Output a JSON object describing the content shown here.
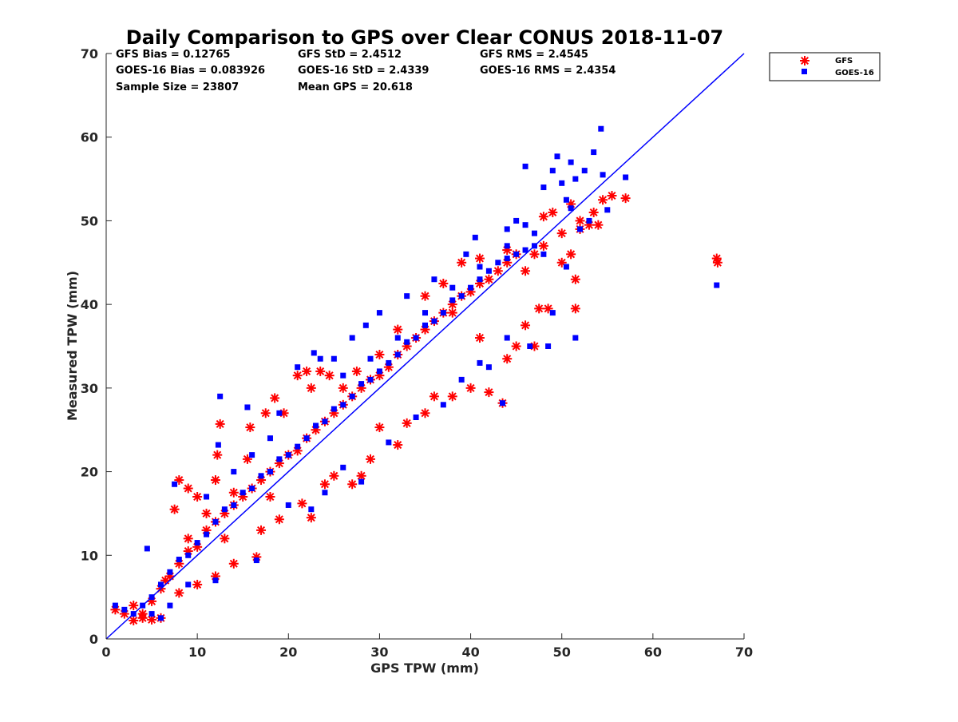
{
  "chart_data": {
    "type": "scatter",
    "title": "Daily Comparison to GPS over Clear CONUS 2018-11-07",
    "xlabel": "GPS TPW (mm)",
    "ylabel": "Measured TPW (mm)",
    "xlim": [
      0,
      70
    ],
    "ylim": [
      0,
      70
    ],
    "xticks": [
      0,
      10,
      20,
      30,
      40,
      50,
      60,
      70
    ],
    "yticks": [
      0,
      10,
      20,
      30,
      40,
      50,
      60,
      70
    ],
    "stats": [
      "GFS Bias = 0.12765",
      "GFS StD = 2.4512",
      "GFS RMS = 2.4545",
      "GOES-16 Bias = 0.083926",
      "GOES-16 StD = 2.4339",
      "GOES-16 RMS = 2.4354",
      "Sample Size = 23807",
      "Mean GPS = 20.618"
    ],
    "reference_line": {
      "name": "1:1",
      "x": [
        0,
        70
      ],
      "y": [
        0,
        70
      ],
      "color": "#0000ff"
    },
    "legend_position": "outside-top-right",
    "series": [
      {
        "name": "GFS",
        "marker": "asterisk",
        "color": "#ff0000",
        "points": [
          [
            1,
            3.5
          ],
          [
            2,
            3
          ],
          [
            3,
            4
          ],
          [
            4,
            3
          ],
          [
            5,
            4.5
          ],
          [
            6,
            6
          ],
          [
            7,
            7.5
          ],
          [
            8,
            9
          ],
          [
            9,
            10.5
          ],
          [
            10,
            11
          ],
          [
            11,
            13
          ],
          [
            12,
            14
          ],
          [
            13,
            15
          ],
          [
            14,
            16
          ],
          [
            15,
            17
          ],
          [
            16,
            18
          ],
          [
            17,
            19
          ],
          [
            18,
            20
          ],
          [
            19,
            21
          ],
          [
            20,
            22
          ],
          [
            21,
            22.5
          ],
          [
            22,
            24
          ],
          [
            23,
            25
          ],
          [
            24,
            26
          ],
          [
            25,
            27
          ],
          [
            26,
            28
          ],
          [
            27,
            29
          ],
          [
            28,
            30
          ],
          [
            29,
            31
          ],
          [
            30,
            31.5
          ],
          [
            31,
            32.5
          ],
          [
            32,
            34
          ],
          [
            33,
            35
          ],
          [
            34,
            36
          ],
          [
            35,
            37
          ],
          [
            36,
            38
          ],
          [
            37,
            39
          ],
          [
            38,
            40
          ],
          [
            39,
            41
          ],
          [
            40,
            41.5
          ],
          [
            41,
            42.5
          ],
          [
            42,
            43
          ],
          [
            43,
            44
          ],
          [
            44,
            45
          ],
          [
            45,
            46
          ],
          [
            46,
            44
          ],
          [
            47,
            46
          ],
          [
            48,
            47
          ],
          [
            7.5,
            15.5
          ],
          [
            8,
            19
          ],
          [
            9,
            18
          ],
          [
            10,
            17
          ],
          [
            12,
            19
          ],
          [
            12.5,
            25.7
          ],
          [
            12.2,
            22
          ],
          [
            15.5,
            21.5
          ],
          [
            15.8,
            25.3
          ],
          [
            17.5,
            27
          ],
          [
            18.5,
            28.8
          ],
          [
            19.5,
            27
          ],
          [
            21,
            31.5
          ],
          [
            22,
            32
          ],
          [
            22.5,
            30
          ],
          [
            23.5,
            32
          ],
          [
            24.5,
            31.5
          ],
          [
            19,
            14.3
          ],
          [
            21.5,
            16.2
          ],
          [
            22.5,
            14.5
          ],
          [
            24,
            18.5
          ],
          [
            25,
            19.5
          ],
          [
            27,
            18.5
          ],
          [
            28,
            19.5
          ],
          [
            29,
            21.5
          ],
          [
            30,
            25.3
          ],
          [
            32,
            23.2
          ],
          [
            33,
            25.8
          ],
          [
            35,
            27
          ],
          [
            36,
            29
          ],
          [
            38,
            29
          ],
          [
            40,
            30
          ],
          [
            42,
            29.5
          ],
          [
            43.5,
            28.2
          ],
          [
            38,
            39
          ],
          [
            41,
            36
          ],
          [
            44,
            33.5
          ],
          [
            45,
            35
          ],
          [
            46,
            37.5
          ],
          [
            47,
            35
          ],
          [
            47.5,
            39.5
          ],
          [
            51.5,
            43
          ],
          [
            51.5,
            39.5
          ],
          [
            48.5,
            39.5
          ],
          [
            50,
            45
          ],
          [
            51,
            46
          ],
          [
            48,
            50.5
          ],
          [
            49,
            51
          ],
          [
            50,
            48.5
          ],
          [
            52,
            49
          ],
          [
            53,
            49.5
          ],
          [
            54,
            49.5
          ],
          [
            54.5,
            52.5
          ],
          [
            55.5,
            53
          ],
          [
            57,
            52.7
          ],
          [
            51,
            52
          ],
          [
            52,
            50
          ],
          [
            53.5,
            51
          ],
          [
            67,
            45.5
          ],
          [
            67.1,
            45
          ],
          [
            4,
            2.5
          ],
          [
            5,
            2.3
          ],
          [
            6,
            2.5
          ],
          [
            3,
            2.2
          ],
          [
            8,
            5.5
          ],
          [
            10,
            6.5
          ],
          [
            12,
            7.5
          ],
          [
            14,
            9
          ],
          [
            16.5,
            9.8
          ],
          [
            13,
            12
          ],
          [
            17,
            13
          ],
          [
            6.5,
            7
          ],
          [
            9,
            12
          ],
          [
            11,
            15
          ],
          [
            14,
            17.5
          ],
          [
            18,
            17
          ],
          [
            26,
            30
          ],
          [
            27.5,
            32
          ],
          [
            30,
            34
          ],
          [
            32,
            37
          ],
          [
            35,
            41
          ],
          [
            37,
            42.5
          ],
          [
            39,
            45
          ],
          [
            41,
            45.5
          ],
          [
            44,
            46.5
          ]
        ]
      },
      {
        "name": "GOES-16",
        "marker": "square",
        "color": "#0000ff",
        "points": [
          [
            1,
            4
          ],
          [
            2,
            3.5
          ],
          [
            3,
            3
          ],
          [
            4,
            4
          ],
          [
            5,
            5
          ],
          [
            6,
            6.5
          ],
          [
            7,
            8
          ],
          [
            8,
            9.5
          ],
          [
            9,
            10
          ],
          [
            10,
            11.5
          ],
          [
            11,
            12.5
          ],
          [
            12,
            14
          ],
          [
            13,
            15.5
          ],
          [
            14,
            16
          ],
          [
            15,
            17.5
          ],
          [
            16,
            18
          ],
          [
            17,
            19.5
          ],
          [
            18,
            20
          ],
          [
            19,
            21.5
          ],
          [
            20,
            22
          ],
          [
            21,
            23
          ],
          [
            22,
            24
          ],
          [
            23,
            25.5
          ],
          [
            24,
            26
          ],
          [
            25,
            27.5
          ],
          [
            26,
            28
          ],
          [
            27,
            29
          ],
          [
            28,
            30.5
          ],
          [
            29,
            31
          ],
          [
            30,
            32
          ],
          [
            31,
            33
          ],
          [
            32,
            34
          ],
          [
            33,
            35.5
          ],
          [
            34,
            36
          ],
          [
            35,
            37.5
          ],
          [
            36,
            38
          ],
          [
            37,
            39
          ],
          [
            38,
            40.5
          ],
          [
            39,
            41
          ],
          [
            40,
            42
          ],
          [
            41,
            43
          ],
          [
            42,
            44
          ],
          [
            43,
            45
          ],
          [
            44,
            45.5
          ],
          [
            45,
            46
          ],
          [
            46,
            46.5
          ],
          [
            47,
            47
          ],
          [
            48,
            46
          ],
          [
            12.5,
            29
          ],
          [
            12.3,
            23.2
          ],
          [
            15.5,
            27.7
          ],
          [
            19,
            27
          ],
          [
            21,
            32.5
          ],
          [
            22.8,
            34.2
          ],
          [
            23.5,
            33.5
          ],
          [
            25,
            33.5
          ],
          [
            27,
            36
          ],
          [
            28.5,
            37.5
          ],
          [
            30,
            39
          ],
          [
            33,
            41
          ],
          [
            36,
            43
          ],
          [
            39.5,
            46
          ],
          [
            40.5,
            48
          ],
          [
            44,
            49
          ],
          [
            46,
            49.5
          ],
          [
            45,
            50
          ],
          [
            49,
            56
          ],
          [
            49.5,
            57.7
          ],
          [
            50,
            54.5
          ],
          [
            50.5,
            52.5
          ],
          [
            51,
            51.5
          ],
          [
            51.5,
            55
          ],
          [
            52.5,
            56
          ],
          [
            53.5,
            58.2
          ],
          [
            54.3,
            61
          ],
          [
            54.5,
            55.5
          ],
          [
            55,
            51.3
          ],
          [
            57,
            55.2
          ],
          [
            46,
            56.5
          ],
          [
            48,
            54
          ],
          [
            51,
            57
          ],
          [
            52,
            49
          ],
          [
            53,
            50
          ],
          [
            50.5,
            44.5
          ],
          [
            49,
            39
          ],
          [
            51.5,
            36
          ],
          [
            48.5,
            35
          ],
          [
            46.5,
            35
          ],
          [
            67,
            42.3
          ],
          [
            16.5,
            9.4
          ],
          [
            12,
            7
          ],
          [
            4.5,
            10.8
          ],
          [
            7.5,
            18.5
          ],
          [
            5,
            3
          ],
          [
            6,
            2.5
          ],
          [
            7,
            4
          ],
          [
            9,
            6.5
          ],
          [
            20,
            16
          ],
          [
            22.5,
            15.5
          ],
          [
            24,
            17.5
          ],
          [
            26,
            20.5
          ],
          [
            28,
            18.8
          ],
          [
            31,
            23.5
          ],
          [
            34,
            26.5
          ],
          [
            37,
            28
          ],
          [
            39,
            31
          ],
          [
            42,
            32.5
          ],
          [
            41,
            33
          ],
          [
            44,
            36
          ],
          [
            43.5,
            28.2
          ],
          [
            18,
            24
          ],
          [
            16,
            22
          ],
          [
            14,
            20
          ],
          [
            11,
            17
          ],
          [
            26,
            31.5
          ],
          [
            29,
            33.5
          ],
          [
            32,
            36
          ],
          [
            35,
            39
          ],
          [
            38,
            42
          ],
          [
            41,
            44.5
          ],
          [
            44,
            47
          ],
          [
            47,
            48.5
          ]
        ]
      }
    ]
  }
}
